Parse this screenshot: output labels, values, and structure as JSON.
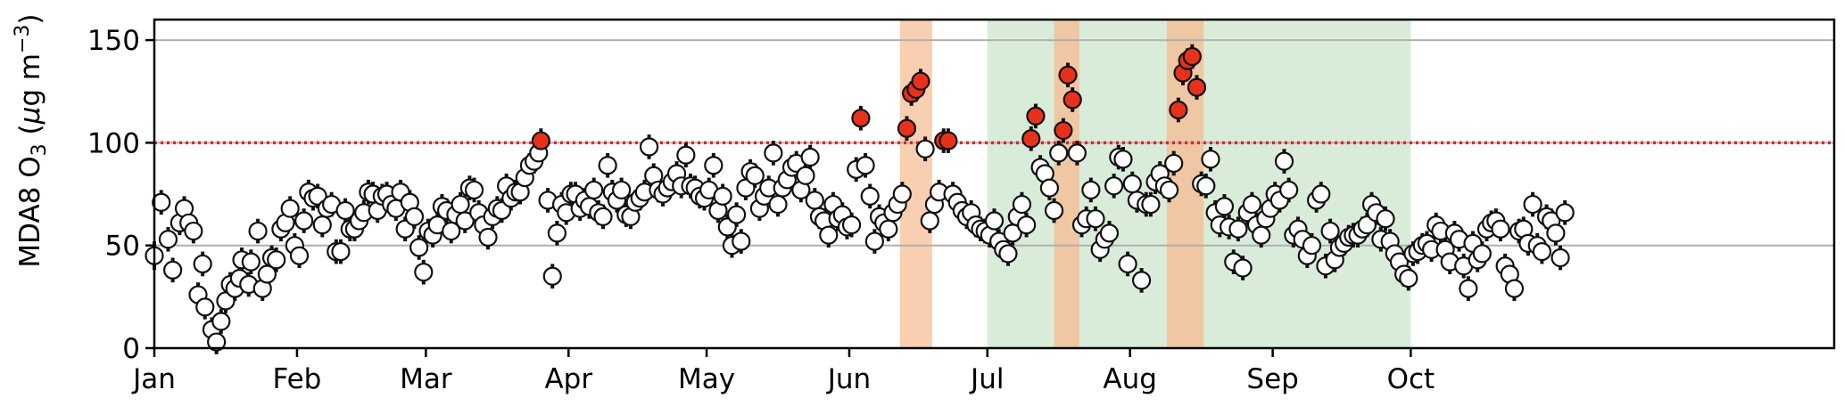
{
  "chart_data": {
    "type": "scatter",
    "title": "",
    "ylabel": {
      "main": "MDA8 O",
      "sub": "3",
      "open": " (",
      "mu": "μ",
      "unit": "g m",
      "sup": "−3",
      "close": ")"
    },
    "xlabel": "",
    "xlim": [
      0,
      365
    ],
    "ylim": [
      0,
      160
    ],
    "grid": "horizontal",
    "threshold": {
      "value": 100,
      "color": "#d62728",
      "style": "dotted"
    },
    "x_ticks": [
      {
        "label": "Jan",
        "day": 0
      },
      {
        "label": "Feb",
        "day": 31
      },
      {
        "label": "Mar",
        "day": 59
      },
      {
        "label": "Apr",
        "day": 90
      },
      {
        "label": "May",
        "day": 120
      },
      {
        "label": "Jun",
        "day": 151
      },
      {
        "label": "Jul",
        "day": 181
      },
      {
        "label": "Aug",
        "day": 212
      },
      {
        "label": "Sep",
        "day": 243
      },
      {
        "label": "Oct",
        "day": 273
      }
    ],
    "y_ticks": [
      0,
      50,
      100,
      150
    ],
    "highlight_spans": [
      {
        "start": 181,
        "end": 273,
        "color": "#d9ecd9"
      },
      {
        "start": 162,
        "end": 169,
        "color": "#f8cfb1"
      },
      {
        "start": 195.5,
        "end": 201,
        "color": "#efc7a3"
      },
      {
        "start": 220,
        "end": 228,
        "color": "#efc7a3"
      }
    ],
    "colors": {
      "normal_fill": "#ffffff",
      "exceed_fill": "#e8311b",
      "edge": "#111111",
      "errorbar": "#111111",
      "grid": "#b0b0b0"
    },
    "points": [
      [
        0.0,
        45.0,
        7.0
      ],
      [
        1.5,
        71.0,
        6.0
      ],
      [
        3.0,
        53.0,
        6.0
      ],
      [
        4.0,
        38.0,
        6.0
      ],
      [
        5.5,
        61.0,
        6.0
      ],
      [
        6.5,
        68.0,
        6.0
      ],
      [
        7.5,
        61.0,
        6.0
      ],
      [
        8.5,
        57.0,
        6.0
      ],
      [
        9.5,
        26.0,
        6.0
      ],
      [
        10.5,
        41.0,
        6.0
      ],
      [
        11.0,
        20.0,
        6.0
      ],
      [
        12.5,
        9.0,
        6.0
      ],
      [
        13.5,
        3.0,
        6.0
      ],
      [
        14.5,
        13.0,
        6.0
      ],
      [
        15.5,
        23.0,
        6.0
      ],
      [
        16.5,
        31.0,
        6.0
      ],
      [
        17.5,
        29.0,
        6.0
      ],
      [
        18.5,
        34.0,
        6.0
      ],
      [
        19.0,
        43.0,
        6.0
      ],
      [
        20.5,
        31.0,
        6.0
      ],
      [
        21.0,
        42.0,
        6.0
      ],
      [
        22.5,
        57.0,
        6.0
      ],
      [
        23.5,
        29.0,
        6.0
      ],
      [
        24.5,
        36.0,
        6.0
      ],
      [
        25.5,
        44.0,
        6.0
      ],
      [
        26.5,
        43.0,
        6.0
      ],
      [
        27.5,
        58.0,
        6.0
      ],
      [
        28.5,
        61.0,
        6.0
      ],
      [
        29.5,
        68.0,
        6.0
      ],
      [
        30.5,
        50.0,
        6.0
      ],
      [
        31.5,
        45.0,
        6.0
      ],
      [
        32.5,
        62.0,
        6.0
      ],
      [
        33.5,
        76.0,
        6.0
      ],
      [
        34.5,
        73.0,
        6.0
      ],
      [
        35.5,
        74.0,
        6.0
      ],
      [
        36.5,
        60.0,
        6.0
      ],
      [
        37.5,
        68.0,
        6.0
      ],
      [
        38.5,
        70.0,
        6.0
      ],
      [
        39.5,
        47.0,
        6.0
      ],
      [
        40.5,
        47.0,
        6.0
      ],
      [
        41.5,
        67.0,
        6.0
      ],
      [
        42.5,
        58.0,
        6.0
      ],
      [
        43.5,
        58.0,
        6.0
      ],
      [
        44.5,
        62.0,
        6.0
      ],
      [
        45.5,
        66.0,
        6.0
      ],
      [
        46.5,
        76.0,
        6.0
      ],
      [
        47.5,
        75.0,
        6.0
      ],
      [
        48.5,
        67.0,
        6.0
      ],
      [
        49.5,
        74.0,
        6.0
      ],
      [
        50.5,
        75.0,
        6.0
      ],
      [
        51.5,
        70.0,
        6.0
      ],
      [
        52.5,
        68.0,
        6.0
      ],
      [
        53.5,
        76.0,
        6.0
      ],
      [
        54.5,
        58.0,
        6.0
      ],
      [
        55.5,
        71.0,
        6.0
      ],
      [
        56.5,
        64.0,
        6.0
      ],
      [
        57.5,
        49.0,
        6.0
      ],
      [
        58.5,
        37.0,
        6.0
      ],
      [
        59.5,
        57.0,
        6.0
      ],
      [
        60.5,
        55.0,
        6.0
      ],
      [
        61.5,
        60.0,
        6.0
      ],
      [
        62.5,
        69.0,
        6.0
      ],
      [
        63.5,
        67.0,
        6.0
      ],
      [
        64.5,
        57.0,
        6.0
      ],
      [
        65.5,
        65.0,
        6.0
      ],
      [
        66.5,
        70.0,
        6.0
      ],
      [
        67.5,
        62.0,
        6.0
      ],
      [
        68.5,
        78.0,
        6.0
      ],
      [
        69.5,
        77.0,
        6.0
      ],
      [
        70.5,
        66.0,
        6.0
      ],
      [
        71.5,
        60.0,
        6.0
      ],
      [
        72.5,
        54.0,
        6.0
      ],
      [
        73.5,
        64.0,
        6.0
      ],
      [
        74.5,
        68.0,
        6.0
      ],
      [
        75.5,
        67.0,
        6.0
      ],
      [
        76.5,
        79.0,
        6.0
      ],
      [
        77.5,
        73.0,
        6.0
      ],
      [
        78.5,
        76.0,
        6.0
      ],
      [
        79.5,
        76.0,
        6.0
      ],
      [
        80.5,
        83.0,
        6.0
      ],
      [
        81.5,
        89.0,
        6.0
      ],
      [
        82.5,
        91.0,
        6.0
      ],
      [
        83.5,
        95.0,
        6.0
      ],
      [
        84.0,
        101.0,
        6.0
      ],
      [
        85.5,
        72.0,
        6.0
      ],
      [
        86.5,
        35.0,
        6.0
      ],
      [
        87.5,
        56.0,
        6.0
      ],
      [
        88.5,
        70.0,
        6.0
      ],
      [
        89.5,
        66.0,
        6.0
      ],
      [
        90.5,
        75.0,
        6.0
      ],
      [
        91.5,
        75.0,
        6.0
      ],
      [
        92.5,
        68.0,
        6.0
      ],
      [
        93.5,
        72.0,
        6.0
      ],
      [
        94.5,
        69.0,
        6.0
      ],
      [
        95.5,
        77.0,
        6.0
      ],
      [
        96.5,
        66.0,
        6.0
      ],
      [
        97.5,
        64.0,
        6.0
      ],
      [
        98.5,
        89.0,
        6.0
      ],
      [
        99.5,
        76.0,
        6.0
      ],
      [
        100.5,
        72.0,
        6.0
      ],
      [
        101.5,
        77.0,
        6.0
      ],
      [
        102.5,
        65.0,
        6.0
      ],
      [
        103.5,
        64.0,
        6.0
      ],
      [
        104.5,
        71.0,
        6.0
      ],
      [
        105.5,
        73.0,
        6.0
      ],
      [
        106.5,
        76.0,
        6.0
      ],
      [
        107.5,
        98.0,
        6.0
      ],
      [
        108.5,
        84.0,
        6.0
      ],
      [
        109.5,
        77.0,
        6.0
      ],
      [
        110.5,
        75.0,
        6.0
      ],
      [
        111.5,
        78.0,
        6.0
      ],
      [
        112.5,
        81.0,
        6.0
      ],
      [
        113.5,
        85.0,
        6.0
      ],
      [
        114.5,
        79.0,
        6.0
      ],
      [
        115.5,
        94.0,
        6.0
      ],
      [
        116.5,
        79.0,
        6.0
      ],
      [
        117.5,
        78.0,
        6.0
      ],
      [
        118.5,
        74.0,
        6.0
      ],
      [
        119.5,
        73.0,
        6.0
      ],
      [
        120.5,
        77.0,
        6.0
      ],
      [
        121.5,
        89.0,
        6.0
      ],
      [
        122.5,
        67.0,
        6.0
      ],
      [
        123.5,
        74.0,
        6.0
      ],
      [
        124.5,
        59.0,
        6.0
      ],
      [
        125.5,
        50.0,
        6.0
      ],
      [
        126.5,
        65.0,
        6.0
      ],
      [
        127.5,
        52.0,
        6.0
      ],
      [
        128.5,
        78.0,
        6.0
      ],
      [
        129.5,
        86.0,
        6.0
      ],
      [
        130.5,
        84.0,
        6.0
      ],
      [
        131.5,
        68.0,
        6.0
      ],
      [
        132.5,
        74.0,
        6.0
      ],
      [
        133.5,
        78.0,
        6.0
      ],
      [
        134.5,
        95.0,
        6.0
      ],
      [
        135.5,
        70.0,
        6.0
      ],
      [
        136.5,
        78.0,
        6.0
      ],
      [
        137.5,
        82.0,
        6.0
      ],
      [
        138.5,
        88.0,
        6.0
      ],
      [
        139.5,
        90.0,
        6.0
      ],
      [
        140.5,
        77.0,
        6.0
      ],
      [
        141.5,
        84.0,
        6.0
      ],
      [
        142.5,
        93.0,
        6.0
      ],
      [
        143.5,
        72.0,
        6.0
      ],
      [
        144.5,
        64.0,
        6.0
      ],
      [
        145.5,
        62.0,
        6.0
      ],
      [
        146.5,
        55.0,
        6.0
      ],
      [
        147.5,
        70.0,
        6.0
      ],
      [
        148.5,
        63.0,
        6.0
      ],
      [
        149.5,
        65.0,
        6.0
      ],
      [
        150.5,
        59.0,
        6.0
      ],
      [
        151.5,
        60.0,
        6.0
      ],
      [
        152.5,
        87.0,
        6.0
      ],
      [
        153.5,
        112.0,
        6.0
      ],
      [
        154.5,
        89.0,
        6.0
      ],
      [
        155.5,
        74.0,
        6.0
      ],
      [
        156.5,
        52.0,
        6.0
      ],
      [
        157.5,
        64.0,
        6.0
      ],
      [
        158.5,
        61.0,
        6.0
      ],
      [
        159.5,
        58.0,
        6.0
      ],
      [
        160.5,
        66.0,
        6.0
      ],
      [
        161.5,
        70.0,
        6.0
      ],
      [
        162.5,
        75.0,
        6.0
      ],
      [
        163.5,
        107.0,
        6.0
      ],
      [
        164.5,
        124.0,
        6.0
      ],
      [
        165.5,
        126.0,
        6.0
      ],
      [
        166.5,
        130.0,
        6.0
      ],
      [
        167.5,
        97.0,
        6.0
      ],
      [
        168.5,
        62.0,
        6.0
      ],
      [
        169.5,
        70.0,
        6.0
      ],
      [
        170.5,
        76.0,
        6.0
      ],
      [
        171.5,
        101.0,
        6.0
      ],
      [
        172.5,
        101.0,
        6.0
      ],
      [
        173.5,
        75.0,
        6.0
      ],
      [
        174.5,
        71.0,
        6.0
      ],
      [
        175.5,
        67.0,
        6.0
      ],
      [
        176.5,
        64.0,
        6.0
      ],
      [
        177.5,
        66.0,
        6.0
      ],
      [
        178.5,
        60.0,
        6.0
      ],
      [
        179.5,
        58.0,
        6.0
      ],
      [
        180.5,
        57.0,
        6.0
      ],
      [
        181.5,
        55.0,
        6.0
      ],
      [
        182.5,
        62.0,
        6.0
      ],
      [
        183.5,
        52.0,
        6.0
      ],
      [
        184.5,
        48.0,
        6.0
      ],
      [
        185.5,
        46.0,
        6.0
      ],
      [
        186.5,
        56.0,
        6.0
      ],
      [
        187.5,
        64.0,
        6.0
      ],
      [
        188.5,
        70.0,
        6.0
      ],
      [
        189.5,
        60.0,
        6.0
      ],
      [
        190.5,
        102.0,
        6.0
      ],
      [
        191.5,
        113.0,
        6.0
      ],
      [
        192.5,
        88.0,
        6.0
      ],
      [
        193.5,
        85.0,
        6.0
      ],
      [
        194.5,
        78.0,
        6.0
      ],
      [
        195.5,
        67.0,
        6.0
      ],
      [
        196.5,
        95.0,
        6.0
      ],
      [
        197.5,
        106.0,
        6.0
      ],
      [
        198.5,
        133.0,
        6.0
      ],
      [
        199.5,
        121.0,
        6.0
      ],
      [
        200.5,
        95.0,
        6.0
      ],
      [
        201.5,
        60.0,
        6.0
      ],
      [
        202.5,
        63.0,
        6.0
      ],
      [
        203.5,
        77.0,
        6.0
      ],
      [
        204.5,
        63.0,
        6.0
      ],
      [
        205.5,
        48.0,
        6.0
      ],
      [
        206.5,
        53.0,
        6.0
      ],
      [
        207.5,
        56.0,
        6.0
      ],
      [
        208.5,
        79.0,
        6.0
      ],
      [
        209.5,
        93.0,
        6.0
      ],
      [
        210.5,
        92.0,
        6.0
      ],
      [
        211.5,
        41.0,
        6.0
      ],
      [
        212.5,
        80.0,
        6.0
      ],
      [
        213.5,
        72.0,
        6.0
      ],
      [
        214.5,
        33.0,
        6.0
      ],
      [
        215.5,
        70.0,
        6.0
      ],
      [
        216.5,
        70.0,
        6.0
      ],
      [
        217.5,
        81.0,
        6.0
      ],
      [
        218.5,
        85.0,
        6.0
      ],
      [
        219.5,
        79.0,
        6.0
      ],
      [
        220.5,
        77.0,
        6.0
      ],
      [
        221.5,
        90.0,
        6.0
      ],
      [
        222.5,
        116.0,
        6.0
      ],
      [
        223.5,
        134.0,
        6.0
      ],
      [
        224.5,
        140.0,
        6.0
      ],
      [
        225.5,
        142.0,
        6.0
      ],
      [
        226.5,
        127.0,
        6.0
      ],
      [
        227.5,
        80.0,
        6.0
      ],
      [
        228.5,
        79.0,
        6.0
      ],
      [
        229.5,
        92.0,
        6.0
      ],
      [
        230.5,
        66.0,
        6.0
      ],
      [
        231.5,
        60.0,
        6.0
      ],
      [
        232.5,
        69.0,
        6.0
      ],
      [
        233.5,
        59.0,
        6.0
      ],
      [
        234.5,
        42.0,
        6.0
      ],
      [
        235.5,
        58.0,
        6.0
      ],
      [
        236.5,
        39.0,
        6.0
      ],
      [
        237.5,
        66.0,
        6.0
      ],
      [
        238.5,
        70.0,
        6.0
      ],
      [
        239.5,
        60.0,
        6.0
      ],
      [
        240.5,
        55.0,
        6.0
      ],
      [
        241.5,
        63.0,
        6.0
      ],
      [
        242.5,
        68.0,
        6.0
      ],
      [
        243.5,
        75.0,
        6.0
      ],
      [
        244.5,
        72.0,
        6.0
      ],
      [
        245.5,
        91.0,
        6.0
      ],
      [
        246.5,
        77.0,
        6.0
      ],
      [
        247.5,
        55.0,
        6.0
      ],
      [
        248.5,
        58.0,
        6.0
      ],
      [
        249.5,
        53.0,
        6.0
      ],
      [
        250.5,
        45.0,
        6.0
      ],
      [
        251.5,
        50.0,
        6.0
      ],
      [
        252.5,
        72.0,
        6.0
      ],
      [
        253.5,
        75.0,
        6.0
      ],
      [
        254.5,
        40.0,
        6.0
      ],
      [
        255.5,
        57.0,
        6.0
      ],
      [
        256.5,
        43.0,
        6.0
      ],
      [
        257.5,
        49.0,
        6.0
      ],
      [
        258.5,
        51.0,
        6.0
      ],
      [
        259.5,
        54.0,
        6.0
      ],
      [
        260.5,
        55.0,
        6.0
      ],
      [
        261.5,
        55.0,
        6.0
      ],
      [
        262.5,
        58.0,
        6.0
      ],
      [
        263.5,
        60.0,
        6.0
      ],
      [
        264.5,
        70.0,
        6.0
      ],
      [
        265.5,
        66.0,
        6.0
      ],
      [
        266.5,
        53.0,
        6.0
      ],
      [
        267.5,
        63.0,
        6.0
      ],
      [
        268.5,
        52.0,
        6.0
      ],
      [
        269.5,
        46.0,
        6.0
      ],
      [
        270.5,
        42.0,
        6.0
      ],
      [
        271.5,
        36.0,
        6.0
      ],
      [
        272.5,
        34.0,
        6.0
      ],
      [
        273.5,
        46.0,
        6.0
      ],
      [
        274.5,
        47.0,
        6.0
      ],
      [
        275.5,
        50.0,
        6.0
      ],
      [
        276.5,
        51.0,
        6.0
      ],
      [
        277.5,
        48.0,
        6.0
      ],
      [
        278.5,
        60.0,
        6.0
      ],
      [
        279.5,
        57.0,
        6.0
      ],
      [
        280.5,
        48.0,
        6.0
      ],
      [
        281.5,
        42.0,
        6.0
      ],
      [
        282.5,
        56.0,
        6.0
      ],
      [
        283.5,
        53.0,
        6.0
      ],
      [
        284.5,
        40.0,
        6.0
      ],
      [
        285.5,
        29.0,
        6.0
      ],
      [
        286.5,
        51.0,
        6.0
      ],
      [
        287.5,
        43.0,
        6.0
      ],
      [
        288.5,
        46.0,
        6.0
      ],
      [
        289.5,
        58.0,
        6.0
      ],
      [
        290.5,
        61.0,
        6.0
      ],
      [
        291.5,
        62.0,
        6.0
      ],
      [
        292.5,
        58.0,
        6.0
      ],
      [
        293.5,
        40.0,
        6.0
      ],
      [
        294.5,
        36.0,
        6.0
      ],
      [
        295.5,
        29.0,
        6.0
      ],
      [
        296.5,
        57.0,
        6.0
      ],
      [
        297.5,
        58.0,
        6.0
      ],
      [
        298.5,
        51.0,
        6.0
      ],
      [
        299.5,
        70.0,
        6.0
      ],
      [
        300.5,
        50.0,
        6.0
      ],
      [
        301.5,
        47.0,
        6.0
      ],
      [
        302.5,
        64.0,
        6.0
      ],
      [
        303.5,
        62.0,
        6.0
      ],
      [
        304.5,
        56.0,
        6.0
      ],
      [
        305.5,
        44.0,
        6.0
      ],
      [
        306.5,
        66.0,
        6.0
      ]
    ]
  }
}
